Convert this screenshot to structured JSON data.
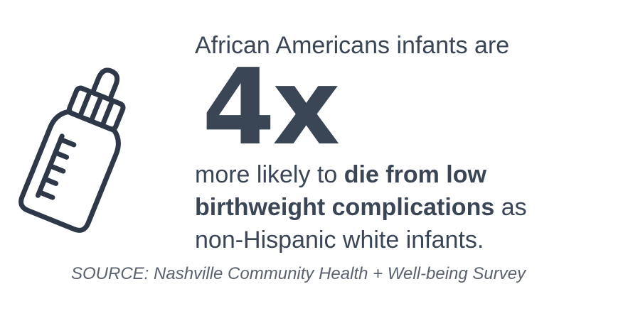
{
  "colors": {
    "text": "#3a4556",
    "source_text": "#5a6270",
    "background": "#ffffff"
  },
  "icon": "baby-bottle-icon",
  "headline": "African Americans infants are",
  "stat": "4x",
  "body": {
    "line1_plain": "more likely to ",
    "line1_bold": "die from low",
    "line2_bold": "birthweight complications",
    "line2_plain": " as",
    "line3_plain": "non-Hispanic white infants."
  },
  "source": "SOURCE: Nashville Community Health + Well-being Survey"
}
